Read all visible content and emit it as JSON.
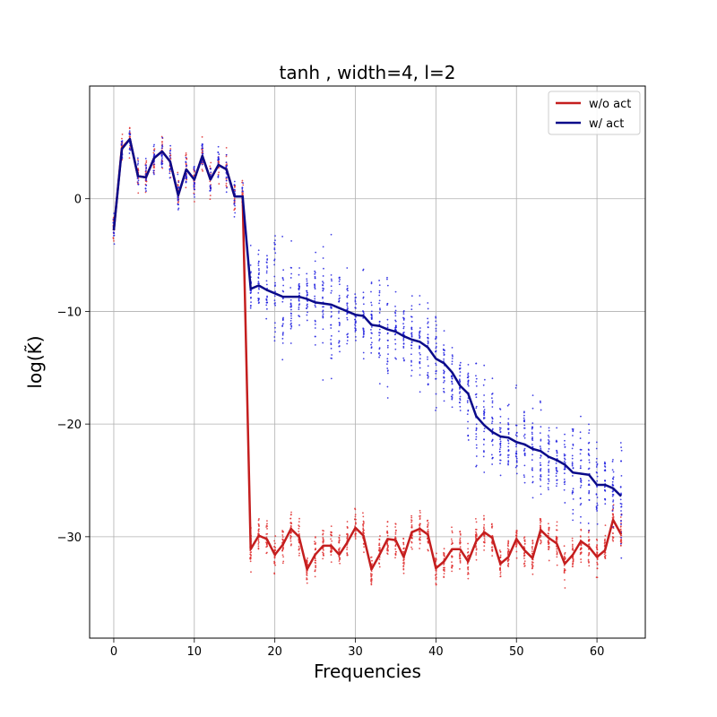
{
  "chart_data": {
    "type": "line",
    "title": "tanh , width=4, l=2",
    "xlabel": "Frequencies",
    "ylabel": "log(K̃)",
    "xlim": [
      -3,
      66
    ],
    "ylim": [
      -39,
      10
    ],
    "x_ticks": [
      0,
      10,
      20,
      30,
      40,
      50,
      60
    ],
    "y_ticks": [
      0,
      -10,
      -20,
      -30
    ],
    "y_tick_labels": [
      "0",
      "−10",
      "−20",
      "−30"
    ],
    "grid": true,
    "legend_position": "top-right",
    "x": [
      0,
      1,
      2,
      3,
      4,
      5,
      6,
      7,
      8,
      9,
      10,
      11,
      12,
      13,
      14,
      15,
      16,
      17,
      18,
      19,
      20,
      21,
      22,
      23,
      24,
      25,
      26,
      27,
      28,
      29,
      30,
      31,
      32,
      33,
      34,
      35,
      36,
      37,
      38,
      39,
      40,
      41,
      42,
      43,
      44,
      45,
      46,
      47,
      48,
      49,
      50,
      51,
      52,
      53,
      54,
      55,
      56,
      57,
      58,
      59,
      60,
      61,
      62,
      63
    ],
    "series": [
      {
        "name": "w/o act",
        "color": "#c41e1e",
        "scatter_color": "#e03030",
        "values": [
          -2.8,
          4.5,
          5.3,
          2.0,
          1.9,
          3.6,
          4.2,
          3.3,
          0.3,
          2.6,
          1.7,
          3.8,
          1.7,
          3.0,
          2.6,
          0.2,
          0.2,
          -31.1,
          -29.9,
          -30.2,
          -31.6,
          -30.7,
          -29.3,
          -30.0,
          -32.9,
          -31.6,
          -30.8,
          -30.8,
          -31.6,
          -30.5,
          -29.2,
          -29.9,
          -32.9,
          -31.6,
          -30.2,
          -30.3,
          -31.8,
          -29.6,
          -29.3,
          -29.8,
          -32.8,
          -32.2,
          -31.1,
          -31.1,
          -32.2,
          -30.4,
          -29.6,
          -30.1,
          -32.4,
          -31.8,
          -30.2,
          -31.2,
          -31.9,
          -29.4,
          -30.1,
          -30.6,
          -32.4,
          -31.6,
          -30.4,
          -30.9,
          -31.8,
          -31.2,
          -28.5,
          -29.8
        ]
      },
      {
        "name": "w/ act",
        "color": "#0a0a8a",
        "scatter_color": "#2020e0",
        "values": [
          -2.8,
          4.4,
          5.3,
          2.0,
          1.9,
          3.6,
          4.2,
          3.3,
          0.3,
          2.6,
          1.7,
          3.8,
          1.7,
          3.0,
          2.6,
          0.2,
          0.2,
          -8.0,
          -7.7,
          -8.1,
          -8.4,
          -8.7,
          -8.7,
          -8.7,
          -8.9,
          -9.2,
          -9.3,
          -9.4,
          -9.7,
          -10.0,
          -10.3,
          -10.4,
          -11.2,
          -11.3,
          -11.6,
          -11.8,
          -12.2,
          -12.5,
          -12.7,
          -13.2,
          -14.2,
          -14.6,
          -15.4,
          -16.6,
          -17.3,
          -19.3,
          -20.1,
          -20.7,
          -21.1,
          -21.2,
          -21.6,
          -21.8,
          -22.2,
          -22.4,
          -22.9,
          -23.2,
          -23.6,
          -24.3,
          -24.4,
          -24.5,
          -25.4,
          -25.4,
          -25.7,
          -26.4
        ]
      }
    ]
  }
}
